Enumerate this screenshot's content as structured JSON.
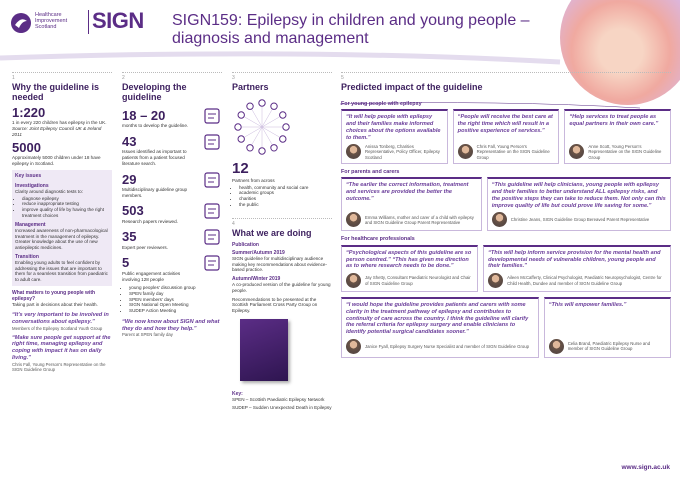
{
  "header": {
    "brand": "Healthcare Improvement Scotland",
    "sign": "SIGN",
    "title": "SIGN159: Epilepsy in children and young people – diagnosis and management"
  },
  "col1": {
    "number": "1",
    "heading": "Why the guideline is needed",
    "stat1": {
      "value": "1:220",
      "text": "1 in every 220 children has epilepsy in the UK.",
      "source": "Source: Joint Epilepsy Council UK & Ireland 2011"
    },
    "stat2": {
      "value": "5000",
      "text": "Approximately 5000 children under 18 have epilepsy in Scotland."
    },
    "key_issues": {
      "title": "Key issues",
      "investigations": {
        "heading": "Investigations",
        "text": "Clarity around diagnostic tests to:",
        "items": [
          "diagnose epilepsy",
          "reduce inappropriate testing",
          "improve quality of life by having the right treatment choices"
        ]
      },
      "management": {
        "heading": "Management",
        "text": "Increased awareness of non-pharmacological treatment in the management of epilepsy.",
        "text2": "Greater knowledge about the use of new antiepileptic medicines."
      },
      "transition": {
        "heading": "Transition",
        "text": "Enabling young adults to feel confident by addressing the issues that are important to them for a seamless transition from paediatric to adult care."
      }
    },
    "question": "What matters to young people with epilepsy?",
    "answer": "Taking part in decisions about their health.",
    "quotes": [
      {
        "text": "“It's very important to be involved in conversations about epilepsy.”",
        "by": "Members of the Epilepsy Scotland Youth Group"
      },
      {
        "text": "“Make sure people get support at the right time, managing epilepsy and coping with impact it has on daily living.”",
        "by": "Chris Fall, Young Person's Representative on the SIGN Guideline Group"
      }
    ]
  },
  "col2": {
    "number": "2",
    "heading": "Developing the guideline",
    "stats": [
      {
        "value": "18 – 20",
        "text": "months to develop the guideline."
      },
      {
        "value": "43",
        "text": "Issues identified as important to patients from a patient focused literature search."
      },
      {
        "value": "29",
        "text": "Multidisciplinary guideline group members."
      },
      {
        "value": "503",
        "text": "Research papers reviewed."
      },
      {
        "value": "35",
        "text": "Expert peer reviewers."
      },
      {
        "value": "5",
        "text": "Public engagement activities involving 128 people"
      }
    ],
    "activities": [
      "young peoples' discussion group",
      "SPEN family day",
      "SPEN members' days",
      "SIGN National Open Meeting",
      "SUDEP Action Meeting"
    ],
    "quote": {
      "text": "“We now know about SIGN and what they do and how they help.”",
      "by": "Parent at SPEN family day"
    }
  },
  "col3": {
    "number": "3",
    "heading": "Partners",
    "value": "12",
    "text": "Partners from across",
    "items": [
      "health, community and social care",
      "academic groups",
      "charities",
      "the public"
    ],
    "section4": {
      "number": "4",
      "heading": "What we are doing",
      "publication": "Publication",
      "date1": "Summer/Autumn 2019",
      "text1": "SIGN guideline for multidisciplinary audience making key recommendations about evidence-based practice.",
      "date2": "Autumn/Winter 2019",
      "text2": "A co-produced version of the guideline for young people.",
      "text3": "Recommendations to be presented at the Scottish Parliament Cross Party Group on Epilepsy."
    },
    "key": {
      "title": "Key:",
      "items": [
        "SPEN – Scottish Paediatric Epilepsy Network",
        "SUDEP – Sudden Unexpected Death in Epilepsy"
      ]
    }
  },
  "col4": {
    "number": "5",
    "heading": "Predicted impact of the guideline",
    "groups": [
      {
        "title": "For young people with epilepsy",
        "quotes": [
          {
            "text": "“It will help people with epilepsy and their families make informed choices about the options available to them.”",
            "by": "Anissa Tonberg, Charities Representative, Policy Officer, Epilepsy Scotland"
          },
          {
            "text": "“People will receive the best care at the right time which will result in a positive experience of services.”",
            "by": "Chris Fall, Young Person's Representative on the SIGN Guideline Group"
          },
          {
            "text": "“Help services to treat people as equal partners in their own care.”",
            "by": "Anne Scott, Young Person's Representative on the SIGN Guideline Group"
          }
        ]
      },
      {
        "title": "For parents and carers",
        "quotes": [
          {
            "text": "“The earlier the correct information, treatment and services are provided the better the outcome.”",
            "by": "Emma Williams, mother and carer of a child with epilepsy and SIGN Guideline Group Parent Representative"
          },
          {
            "text": "“This guideline will help clinicians, young people with epilepsy and their families to better understand ALL epilepsy risks, and the positive steps they can take to reduce them. Not only can this improve quality of life but could prove life saving for some.”",
            "by": "Christine Jeans, SIGN Guideline Group Bereaved Parent Representative"
          }
        ]
      },
      {
        "title": "For healthcare professionals",
        "quotes": [
          {
            "text": "“Psychological aspects of this guideline are so person centred.” “This has given me direction as to where research needs to be done.”",
            "by": "Jay Shetty, Consultant Paediatric Neurologist and Chair of SIGN Guideline Group"
          },
          {
            "text": "“This will help inform service provision for the mental health and developmental needs of vulnerable children, young people and their families.”",
            "by": "Aileen McCafferty, Clinical Psychologist, Paediatric Neuropsychologist, Centre for Child Health, Dundee and member of SIGN Guideline Group"
          },
          {
            "text": "“I would hope the guideline provides patients and carers with some clarity in the treatment pathway of epilepsy and contributes to continuity of care across the country. I think the guideline will clarify the referral criteria for epilepsy surgery and enable clinicians to identify potential surgical candidates sooner.”",
            "by": "Janice Fyall, Epilepsy Surgery Nurse Specialist and member of SIGN Guideline Group"
          },
          {
            "text": "“This will empower families.”",
            "by": "Celia Brand, Paediatric Epilepsy Nurse and member of SIGN Guideline Group"
          }
        ]
      }
    ],
    "url": "www.sign.ac.uk"
  }
}
